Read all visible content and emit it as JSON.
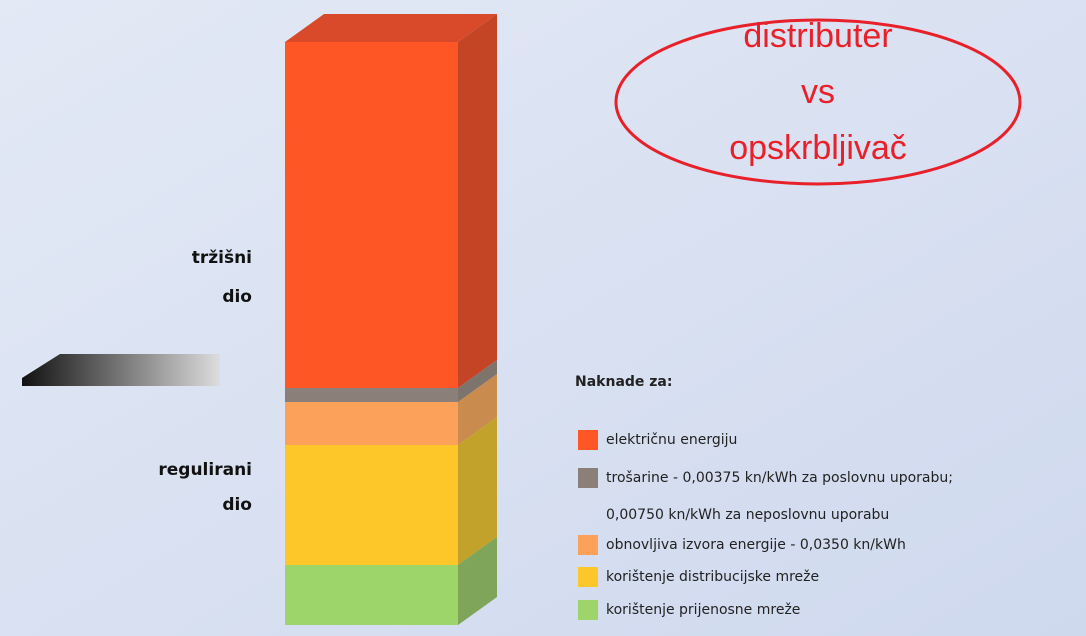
{
  "callout": {
    "lines": [
      "distributer",
      "vs",
      "opskrbljivač"
    ]
  },
  "bar_labels": {
    "market": [
      "tržišni",
      "dio"
    ],
    "regulated": [
      "regulirani",
      "dio"
    ]
  },
  "legend": {
    "title": "Naknade za:",
    "items": [
      "električnu energiju",
      "trošarine - 0,00375 kn/kWh za poslovnu uporabu;",
      "0,00750 kn/kWh za neposlovnu uporabu",
      "obnovljiva izvora energije - 0,0350 kn/kWh",
      "korištenje distribucijske mreže",
      "korištenje prijenosne mreže"
    ]
  }
}
